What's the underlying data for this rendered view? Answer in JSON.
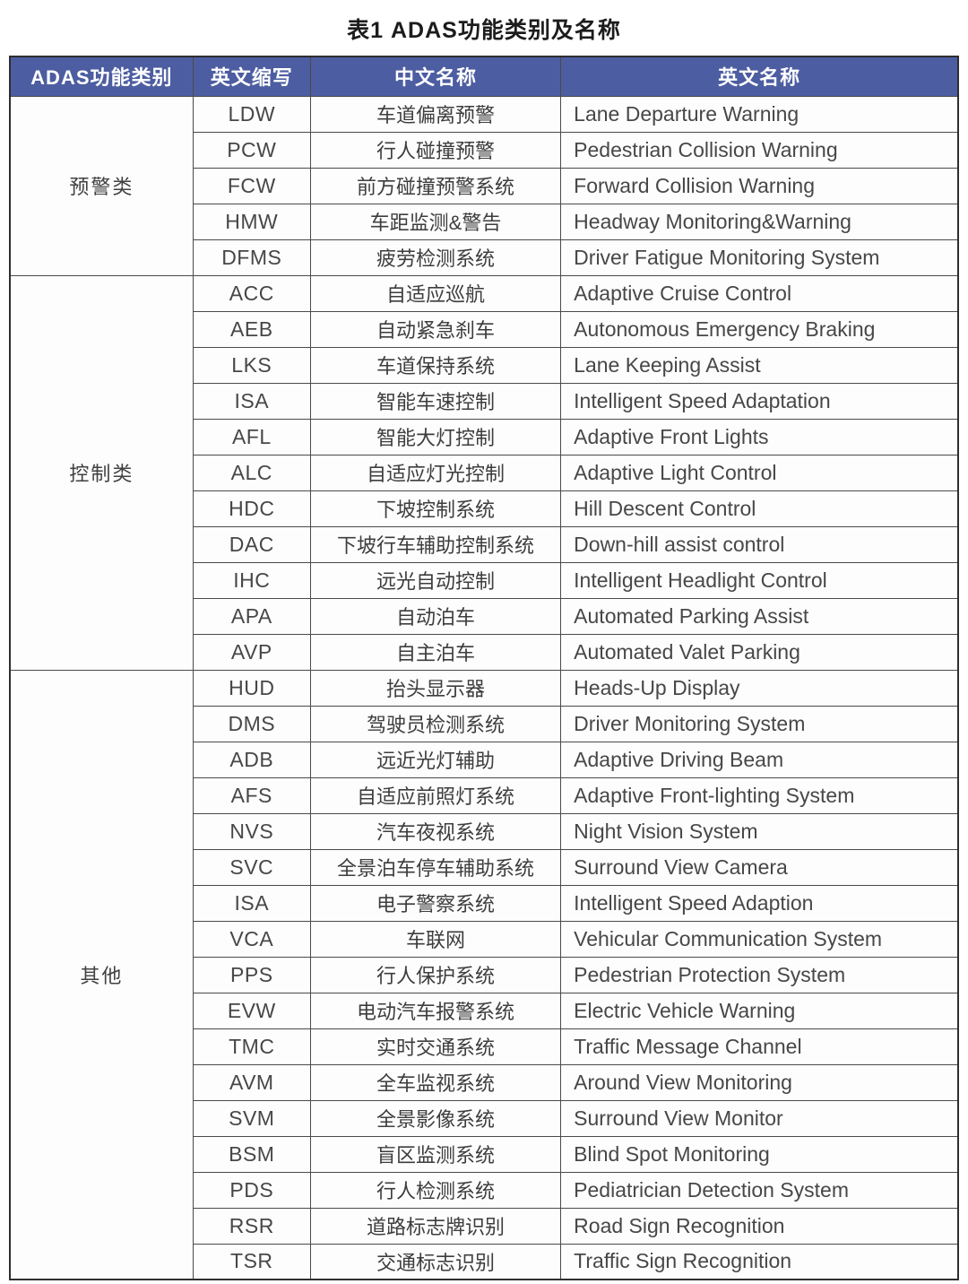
{
  "title": "表1 ADAS功能类别及名称",
  "columns": [
    "ADAS功能类别",
    "英文缩写",
    "中文名称",
    "英文名称"
  ],
  "colors": {
    "header_bg": "#4d5da1",
    "header_text": "#ffffff",
    "body_text": "#474747",
    "border": "#4a4a4a"
  },
  "groups": [
    {
      "category": "预警类",
      "rows": [
        {
          "abbr": "LDW",
          "cn": "车道偏离预警",
          "en": "Lane Departure Warning"
        },
        {
          "abbr": "PCW",
          "cn": "行人碰撞预警",
          "en": "Pedestrian Collision Warning"
        },
        {
          "abbr": "FCW",
          "cn": "前方碰撞预警系统",
          "en": "Forward Collision Warning"
        },
        {
          "abbr": "HMW",
          "cn": "车距监测&警告",
          "en": "Headway Monitoring&Warning"
        },
        {
          "abbr": "DFMS",
          "cn": "疲劳检测系统",
          "en": "Driver Fatigue Monitoring System"
        }
      ]
    },
    {
      "category": "控制类",
      "rows": [
        {
          "abbr": "ACC",
          "cn": "自适应巡航",
          "en": "Adaptive Cruise Control"
        },
        {
          "abbr": "AEB",
          "cn": "自动紧急刹车",
          "en": "Autonomous Emergency Braking"
        },
        {
          "abbr": "LKS",
          "cn": "车道保持系统",
          "en": "Lane Keeping Assist"
        },
        {
          "abbr": "ISA",
          "cn": "智能车速控制",
          "en": "Intelligent Speed Adaptation"
        },
        {
          "abbr": "AFL",
          "cn": "智能大灯控制",
          "en": "Adaptive Front Lights"
        },
        {
          "abbr": "ALC",
          "cn": "自适应灯光控制",
          "en": "Adaptive Light Control"
        },
        {
          "abbr": "HDC",
          "cn": "下坡控制系统",
          "en": "Hill Descent Control"
        },
        {
          "abbr": "DAC",
          "cn": "下坡行车辅助控制系统",
          "en": "Down-hill assist control"
        },
        {
          "abbr": "IHC",
          "cn": "远光自动控制",
          "en": "Intelligent Headlight Control"
        },
        {
          "abbr": "APA",
          "cn": "自动泊车",
          "en": "Automated Parking Assist"
        },
        {
          "abbr": "AVP",
          "cn": "自主泊车",
          "en": "Automated Valet Parking"
        }
      ]
    },
    {
      "category": "其他",
      "rows": [
        {
          "abbr": "HUD",
          "cn": "抬头显示器",
          "en": "Heads-Up Display"
        },
        {
          "abbr": "DMS",
          "cn": "驾驶员检测系统",
          "en": "Driver Monitoring System"
        },
        {
          "abbr": "ADB",
          "cn": "远近光灯辅助",
          "en": "Adaptive Driving Beam"
        },
        {
          "abbr": "AFS",
          "cn": "自适应前照灯系统",
          "en": "Adaptive Front-lighting System"
        },
        {
          "abbr": "NVS",
          "cn": "汽车夜视系统",
          "en": "Night Vision System"
        },
        {
          "abbr": "SVC",
          "cn": "全景泊车停车辅助系统",
          "en": "Surround View Camera"
        },
        {
          "abbr": "ISA",
          "cn": "电子警察系统",
          "en": "Intelligent Speed Adaption"
        },
        {
          "abbr": "VCA",
          "cn": "车联网",
          "en": "Vehicular Communication System"
        },
        {
          "abbr": "PPS",
          "cn": "行人保护系统",
          "en": "Pedestrian Protection System"
        },
        {
          "abbr": "EVW",
          "cn": "电动汽车报警系统",
          "en": "Electric Vehicle Warning"
        },
        {
          "abbr": "TMC",
          "cn": "实时交通系统",
          "en": "Traffic Message Channel"
        },
        {
          "abbr": "AVM",
          "cn": "全车监视系统",
          "en": "Around View Monitoring"
        },
        {
          "abbr": "SVM",
          "cn": "全景影像系统",
          "en": "Surround View Monitor"
        },
        {
          "abbr": "BSM",
          "cn": "盲区监测系统",
          "en": "Blind Spot Monitoring"
        },
        {
          "abbr": "PDS",
          "cn": "行人检测系统",
          "en": "Pediatrician Detection System"
        },
        {
          "abbr": "RSR",
          "cn": "道路标志牌识别",
          "en": "Road Sign Recognition"
        },
        {
          "abbr": "TSR",
          "cn": "交通标志识别",
          "en": "Traffic Sign Recognition"
        }
      ]
    }
  ]
}
